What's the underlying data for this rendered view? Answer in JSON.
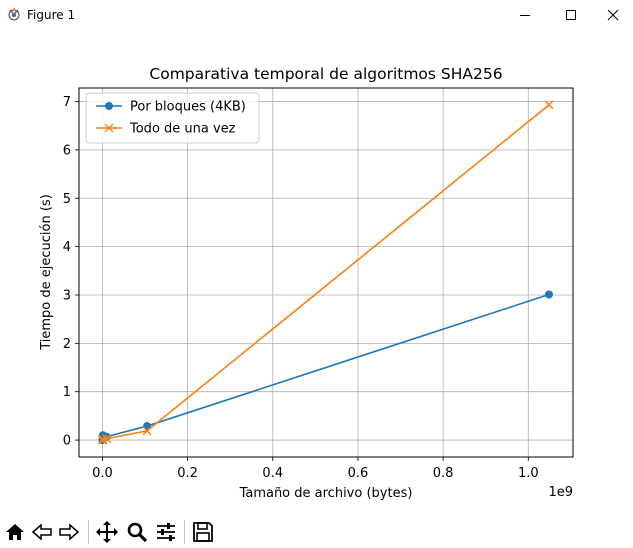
{
  "window": {
    "title": "Figure 1",
    "icons": [
      "app-icon",
      "minimize-icon",
      "maximize-icon",
      "close-icon"
    ]
  },
  "toolbar": {
    "buttons": [
      "home-icon",
      "back-icon",
      "forward-icon",
      "pan-icon",
      "zoom-icon",
      "configure-subplots-icon",
      "save-icon"
    ]
  },
  "chart_data": {
    "type": "line",
    "title": "Comparativa temporal de algoritmos SHA256",
    "xlabel": "Tamaño de archivo (bytes)",
    "ylabel": "Tiempo de ejecución (s)",
    "x_offset_label": "1e9",
    "xlim": [
      -0.055,
      1.105
    ],
    "ylim": [
      -0.35,
      7.28
    ],
    "xticks": [
      0.0,
      0.2,
      0.4,
      0.6,
      0.8,
      1.0
    ],
    "xtick_labels": [
      "0.0",
      "0.2",
      "0.4",
      "0.6",
      "0.8",
      "1.0"
    ],
    "yticks": [
      0,
      1,
      2,
      3,
      4,
      5,
      6,
      7
    ],
    "ytick_labels": [
      "0",
      "1",
      "2",
      "3",
      "4",
      "5",
      "6",
      "7"
    ],
    "grid": true,
    "legend_position": "top-left",
    "series": [
      {
        "name": "Por bloques (4KB)",
        "color": "#1f77b4",
        "marker": "circle",
        "x": [
          0.0,
          0.001,
          0.01,
          0.1048576,
          1.048576
        ],
        "y": [
          0.0,
          0.1,
          0.07,
          0.29,
          3.01
        ]
      },
      {
        "name": "Todo de una vez",
        "color": "#ff7f0e",
        "marker": "x",
        "x": [
          0.0,
          0.001,
          0.01,
          0.1048576,
          1.048576
        ],
        "y": [
          0.0,
          0.02,
          0.03,
          0.19,
          6.93
        ]
      }
    ]
  }
}
